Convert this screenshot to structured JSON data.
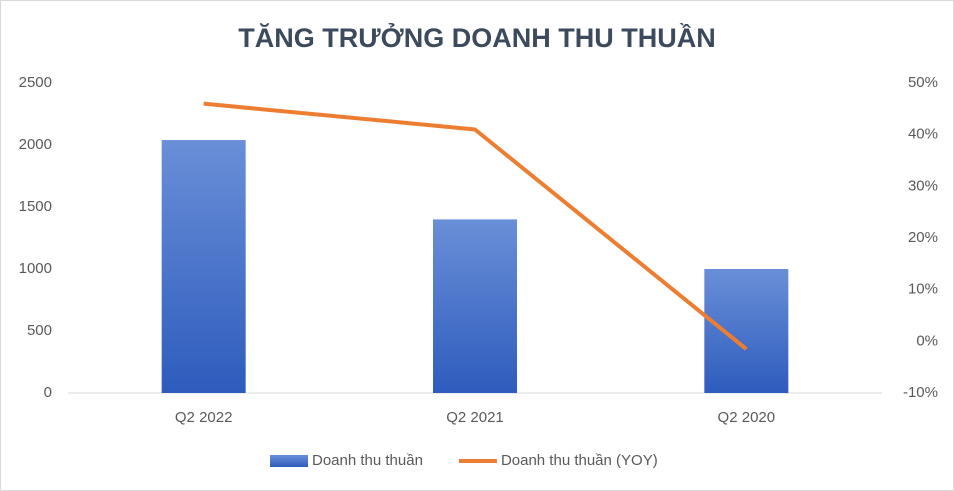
{
  "chart_data": {
    "type": "bar",
    "title": "TĂNG TRƯỞNG DOANH THU THUẦN",
    "categories": [
      "Q2 2022",
      "Q2 2021",
      "Q2 2020"
    ],
    "series": [
      {
        "name": "Doanh thu thuần",
        "type": "bar",
        "color": "#4472c4",
        "values": [
          2040,
          1400,
          1000
        ]
      },
      {
        "name": "Doanh thu thuần (YOY)",
        "type": "line",
        "color": "#ed7d31",
        "axis": "y2",
        "values": [
          46,
          41,
          -1.5
        ]
      }
    ],
    "ylim": [
      0,
      2500
    ],
    "yticks": [
      0,
      500,
      1000,
      1500,
      2000,
      2500
    ],
    "y2lim": [
      -10,
      50
    ],
    "y2ticks": [
      {
        "value": -10,
        "label": "-10%"
      },
      {
        "value": 0,
        "label": "0%"
      },
      {
        "value": 10,
        "label": "10%"
      },
      {
        "value": 20,
        "label": "20%"
      },
      {
        "value": 30,
        "label": "30%"
      },
      {
        "value": 40,
        "label": "40%"
      },
      {
        "value": 50,
        "label": "50%"
      }
    ],
    "grid": false,
    "legend": "bottom"
  }
}
